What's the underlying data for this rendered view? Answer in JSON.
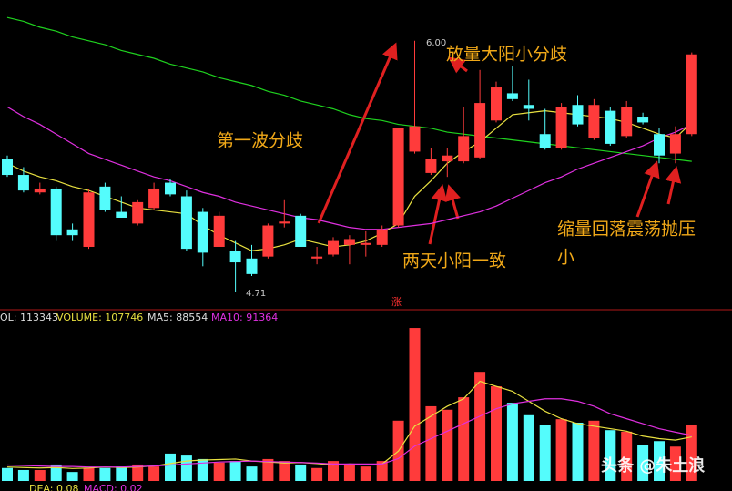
{
  "chart_data": [
    {
      "type": "candlestick",
      "open": [
        5.39,
        5.31,
        5.22,
        5.24,
        5.03,
        4.94,
        5.25,
        5.12,
        5.06,
        5.14,
        5.27,
        5.2,
        5.12,
        4.94,
        4.92,
        4.88,
        4.89,
        5.06,
        5.1,
        4.88,
        4.9,
        4.95,
        4.95,
        4.95,
        5.05,
        5.43,
        5.32,
        5.38,
        5.38,
        5.4,
        5.59,
        5.73,
        5.67,
        5.52,
        5.45,
        5.67,
        5.5,
        5.64,
        5.51,
        5.61,
        5.52,
        5.42,
        5.52
      ],
      "high": [
        5.41,
        5.35,
        5.27,
        5.25,
        5.06,
        5.24,
        5.27,
        5.2,
        5.18,
        5.27,
        5.29,
        5.23,
        5.14,
        5.12,
        4.97,
        4.95,
        5.06,
        5.18,
        5.11,
        4.94,
        4.99,
        5.0,
        5.02,
        5.05,
        5.55,
        6.0,
        5.45,
        5.45,
        5.66,
        5.85,
        5.79,
        5.87,
        5.8,
        5.65,
        5.68,
        5.72,
        5.7,
        5.66,
        5.69,
        5.63,
        5.55,
        5.56,
        5.94
      ],
      "low": [
        5.3,
        5.22,
        5.21,
        4.97,
        4.97,
        4.93,
        5.12,
        5.09,
        5.05,
        5.13,
        5.2,
        4.92,
        4.84,
        4.94,
        4.71,
        4.79,
        4.88,
        5.04,
        4.94,
        4.85,
        4.89,
        4.85,
        4.89,
        4.94,
        5.04,
        5.42,
        5.31,
        5.3,
        5.37,
        5.39,
        5.58,
        5.69,
        5.59,
        5.44,
        5.44,
        5.56,
        5.49,
        5.46,
        5.5,
        5.57,
        5.37,
        5.37,
        5.51
      ],
      "close": [
        5.31,
        5.23,
        5.24,
        5.0,
        5.0,
        5.22,
        5.13,
        5.09,
        5.17,
        5.24,
        5.21,
        4.93,
        4.91,
        5.1,
        4.86,
        4.8,
        5.05,
        5.07,
        4.94,
        4.89,
        4.97,
        4.98,
        4.96,
        5.03,
        5.55,
        5.56,
        5.39,
        5.41,
        5.51,
        5.68,
        5.76,
        5.7,
        5.65,
        5.45,
        5.66,
        5.57,
        5.67,
        5.47,
        5.66,
        5.58,
        5.41,
        5.52,
        5.93
      ],
      "up_color": "#ff3b3b",
      "down_color": "#54fcfc",
      "ylim": [
        4.64,
        6.21
      ],
      "lines": [
        {
          "color": "#1fd21f",
          "values": [
            6.12,
            6.1,
            6.07,
            6.05,
            6.02,
            6.0,
            5.98,
            5.95,
            5.93,
            5.91,
            5.88,
            5.86,
            5.84,
            5.81,
            5.79,
            5.77,
            5.74,
            5.72,
            5.69,
            5.67,
            5.65,
            5.62,
            5.6,
            5.59,
            5.57,
            5.56,
            5.55,
            5.53,
            5.52,
            5.51,
            5.5,
            5.49,
            5.48,
            5.47,
            5.46,
            5.45,
            5.44,
            5.43,
            5.42,
            5.41,
            5.4,
            5.39,
            5.38
          ]
        },
        {
          "color": "#e030e0",
          "values": [
            5.66,
            5.61,
            5.57,
            5.52,
            5.47,
            5.42,
            5.39,
            5.36,
            5.33,
            5.3,
            5.28,
            5.25,
            5.22,
            5.2,
            5.17,
            5.15,
            5.13,
            5.11,
            5.09,
            5.08,
            5.06,
            5.04,
            5.03,
            5.03,
            5.04,
            5.05,
            5.06,
            5.08,
            5.1,
            5.12,
            5.15,
            5.19,
            5.23,
            5.27,
            5.3,
            5.34,
            5.37,
            5.4,
            5.43,
            5.46,
            5.5,
            5.53,
            5.57
          ]
        },
        {
          "color": "#e8e040",
          "values": [
            5.37,
            5.33,
            5.3,
            5.28,
            5.25,
            5.23,
            5.2,
            5.17,
            5.14,
            5.13,
            5.12,
            5.11,
            5.05,
            5.0,
            4.96,
            4.92,
            4.93,
            4.95,
            4.98,
            4.96,
            4.94,
            4.95,
            4.97,
            5.01,
            5.06,
            5.2,
            5.28,
            5.37,
            5.43,
            5.48,
            5.55,
            5.62,
            5.63,
            5.64,
            5.63,
            5.62,
            5.61,
            5.6,
            5.58,
            5.55,
            5.52,
            5.5,
            5.58
          ]
        }
      ],
      "high_label": "6.00",
      "low_label": "4.71",
      "rise_mark": "涨",
      "annotations": [
        "第一波分歧",
        "放量大阳小分歧",
        "两天小阳一致",
        "缩量回落震荡抛压",
        "小"
      ]
    },
    {
      "type": "bar",
      "values": [
        26000,
        22000,
        22000,
        33000,
        18000,
        26000,
        26000,
        29000,
        33000,
        29000,
        55000,
        51000,
        44000,
        37000,
        40000,
        29000,
        44000,
        40000,
        33000,
        26000,
        40000,
        33000,
        29000,
        40000,
        121000,
        307000,
        150000,
        143000,
        168000,
        219000,
        190000,
        157000,
        132000,
        113000,
        124000,
        117000,
        121000,
        102000,
        99000,
        73000,
        80000,
        69000,
        113343
      ],
      "ylim": [
        0,
        340000
      ],
      "lines": [
        {
          "color": "#e8e040",
          "values": [
            28000,
            27000,
            26000,
            27000,
            25000,
            26000,
            28000,
            27000,
            28000,
            30000,
            35000,
            40000,
            42000,
            43000,
            44000,
            40000,
            38000,
            36000,
            37000,
            35000,
            32000,
            34000,
            33000,
            34000,
            60000,
            110000,
            130000,
            150000,
            165000,
            200000,
            190000,
            180000,
            160000,
            140000,
            125000,
            115000,
            110000,
            105000,
            100000,
            90000,
            85000,
            82000,
            88554
          ]
        },
        {
          "color": "#e030e0",
          "values": [
            32000,
            31000,
            30000,
            29000,
            29000,
            28000,
            28000,
            28000,
            29000,
            30000,
            32000,
            34000,
            36000,
            38000,
            39000,
            40000,
            39000,
            38000,
            37000,
            36000,
            34000,
            34000,
            34000,
            34000,
            45000,
            70000,
            85000,
            100000,
            115000,
            130000,
            145000,
            155000,
            160000,
            165000,
            165000,
            160000,
            150000,
            135000,
            125000,
            115000,
            105000,
            98000,
            91364
          ]
        }
      ],
      "legend": [
        "OL: 113343",
        "VOLUME: 107746",
        "MA5: 88554",
        "MA10: 91364"
      ],
      "footer": [
        "DEA: 0.08",
        "MACD: 0.02"
      ],
      "watermark": "头条 @朱土浪"
    }
  ]
}
